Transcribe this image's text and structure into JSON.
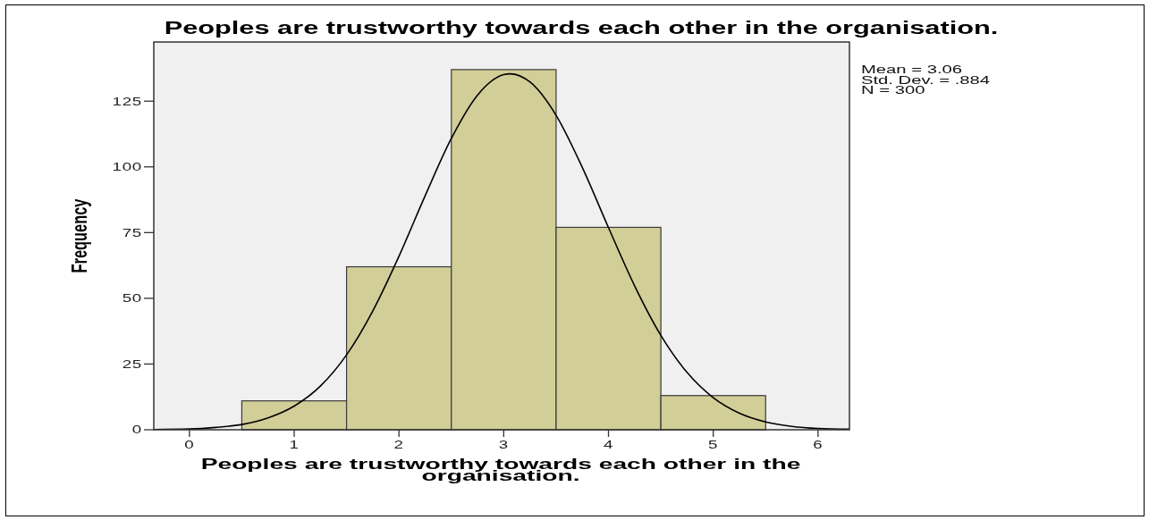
{
  "chart_data": {
    "type": "histogram",
    "title": "Peoples are trustworthy towards each other in the organisation.",
    "xlabel": "Peoples are trustworthy towards each other in the organisation.",
    "ylabel": "Frequency",
    "series": [
      {
        "color": "#d2ce98",
        "bins": [
          0.5,
          1.5,
          2.5,
          3.5,
          4.5,
          5.5
        ],
        "values": [
          11,
          62,
          137,
          77,
          13
        ]
      },
      {
        "type": "line",
        "color": "#000000",
        "x": [
          -0.34,
          0,
          0.25,
          0.5,
          0.75,
          1,
          1.25,
          1.5,
          1.75,
          2,
          2.25,
          2.5,
          2.75,
          3,
          3.06,
          3.25,
          3.5,
          3.75,
          4,
          4.25,
          4.5,
          4.75,
          5,
          5.25,
          5.5,
          5.75,
          6,
          6.3
        ],
        "values": [
          0.1,
          0.3,
          0.9,
          2,
          4.5,
          9,
          16.6,
          28.5,
          45.2,
          66,
          89,
          110.8,
          127.3,
          135.1,
          135.4,
          132.3,
          119.6,
          99.8,
          76.9,
          54.7,
          35.9,
          21.8,
          12.2,
          6.3,
          3,
          1.3,
          0.5,
          0.2
        ]
      }
    ],
    "xlim": [
      -0.34,
      6.3
    ],
    "xticks": [
      0,
      1,
      2,
      3,
      4,
      5,
      6
    ],
    "ylim": [
      0,
      147.5
    ],
    "yticks": [
      0,
      25,
      50,
      75,
      100,
      125
    ],
    "annotations": [
      "Mean = 3.06",
      "Std. Dev. = .884",
      "N = 300"
    ]
  }
}
